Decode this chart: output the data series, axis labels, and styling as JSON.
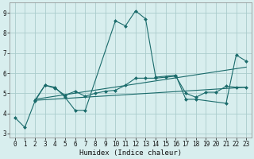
{
  "xlabel": "Humidex (Indice chaleur)",
  "bg_color": "#d8eeee",
  "grid_color": "#aacccc",
  "line_color": "#1a6b6b",
  "xlim": [
    -0.5,
    23.5
  ],
  "ylim": [
    2.8,
    9.5
  ],
  "xticks": [
    0,
    1,
    2,
    3,
    4,
    5,
    6,
    7,
    8,
    9,
    10,
    11,
    12,
    13,
    14,
    15,
    16,
    17,
    18,
    19,
    20,
    21,
    22,
    23
  ],
  "yticks": [
    3,
    4,
    5,
    6,
    7,
    8,
    9
  ],
  "series1_x": [
    0,
    1,
    2,
    3,
    4,
    5,
    6,
    7,
    10,
    11,
    12,
    13,
    14,
    16,
    17,
    18,
    21,
    22,
    23
  ],
  "series1_y": [
    3.8,
    3.3,
    4.6,
    5.4,
    5.3,
    4.8,
    4.15,
    4.15,
    8.6,
    8.35,
    9.1,
    8.7,
    5.8,
    5.9,
    4.7,
    4.7,
    4.5,
    6.9,
    6.6
  ],
  "series2_x": [
    2,
    3,
    4,
    5,
    6,
    7,
    8,
    9,
    10,
    11,
    12,
    13,
    14,
    15,
    16,
    17,
    18,
    19,
    20,
    21,
    22,
    23
  ],
  "series2_y": [
    4.65,
    5.4,
    5.25,
    4.9,
    5.1,
    4.85,
    5.0,
    5.1,
    5.15,
    5.4,
    5.75,
    5.75,
    5.75,
    5.8,
    5.85,
    5.0,
    4.8,
    5.05,
    5.05,
    5.35,
    5.3,
    5.3
  ],
  "trend1_x": [
    2,
    23
  ],
  "trend1_y": [
    4.7,
    6.3
  ],
  "trend2_x": [
    2,
    23
  ],
  "trend2_y": [
    4.65,
    5.3
  ],
  "tick_fontsize": 5.5,
  "xlabel_fontsize": 6.5,
  "marker_size": 2.0,
  "line_width": 0.8
}
